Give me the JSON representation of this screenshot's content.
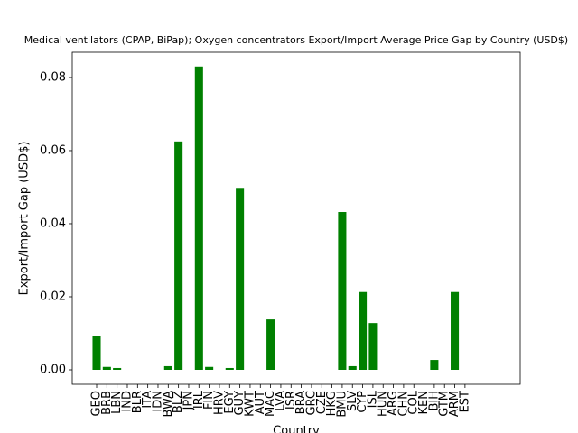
{
  "chart_data": {
    "type": "bar",
    "title": "Medical ventilators (CPAP, BiPap); Oxygen concentrators Export/Import Average Price Gap by Country (USD$)",
    "x_label": "Country",
    "y_label": "Export/Import Gap (USD$)",
    "categories": [
      "GEO",
      "BRB",
      "LBN",
      "IND",
      "BLR",
      "ITA",
      "IDN",
      "BWA",
      "BLZ",
      "JPN",
      "IRL",
      "FIN",
      "HRV",
      "EGY",
      "GUY",
      "KWT",
      "AUT",
      "MAC",
      "LVA",
      "ISR",
      "BRA",
      "GRC",
      "CZE",
      "HKG",
      "BMU",
      "SLV",
      "CYP",
      "ISL",
      "HUN",
      "ARG",
      "CHN",
      "COL",
      "KEN",
      "BIH",
      "GTM",
      "ARM",
      "EST"
    ],
    "values": [
      0.0092,
      0.0008,
      0.0005,
      0,
      0,
      0,
      0,
      0.001,
      0.0625,
      0,
      0.083,
      0.0008,
      0,
      0.0005,
      0.0498,
      0,
      0,
      0.0138,
      0,
      0,
      0,
      0,
      0,
      0,
      0.0432,
      0.001,
      0.0213,
      0.0128,
      0,
      0,
      0,
      0,
      0,
      0.0027,
      0,
      0.0213,
      0
    ],
    "color": "#008000",
    "ylim": [
      -0.00395,
      0.0869
    ],
    "yticks": [
      {
        "value": 0,
        "label": "0.00"
      },
      {
        "value": 0.02,
        "label": "0.02"
      },
      {
        "value": 0.04,
        "label": "0.04"
      },
      {
        "value": 0.06,
        "label": "0.06"
      },
      {
        "value": 0.08,
        "label": "0.08"
      }
    ],
    "grid": false
  }
}
